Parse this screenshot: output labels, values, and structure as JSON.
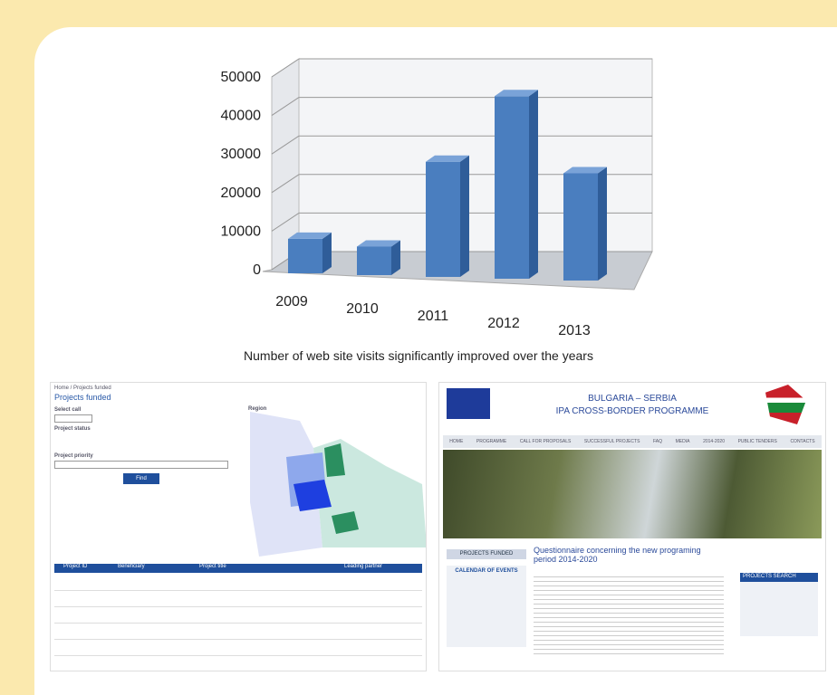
{
  "chart_data": {
    "type": "bar",
    "categories": [
      "2009",
      "2010",
      "2011",
      "2012",
      "2013"
    ],
    "values": [
      8000,
      6000,
      28000,
      45000,
      25000
    ],
    "color": "#4a7ebf",
    "ylim": [
      0,
      50000
    ],
    "yticks": [
      0,
      10000,
      20000,
      30000,
      40000,
      50000
    ],
    "grid": true,
    "caption": "Number of web site visits significantly improved over the years"
  },
  "left_screenshot": {
    "breadcrumb": "Home / Projects funded",
    "title": "Projects funded",
    "select_call": "Select call",
    "project_status": "Project status",
    "project_priority": "Project priority",
    "button": "Find",
    "region": "Region",
    "table_headers": [
      "Project ID",
      "Beneficiary",
      "Project title",
      "Leading partner"
    ]
  },
  "right_screenshot": {
    "title_line1": "BULGARIA – SERBIA",
    "title_line2": "IPA CROSS-BORDER PROGRAMME",
    "nav": [
      "HOME",
      "PROGRAMME",
      "CALL FOR PROPOSALS",
      "SUCCESSFUL PROJECTS",
      "FAQ",
      "MEDIA",
      "2014-2020",
      "PUBLIC TENDERS",
      "CONTACTS"
    ],
    "sidebar_button": "PROJECTS FUNDED",
    "calendar": "CALENDAR OF EVENTS",
    "article_title": "Questionnaire concerning the new programing period 2014-2020",
    "search_box": "PROJECTS SEARCH"
  }
}
